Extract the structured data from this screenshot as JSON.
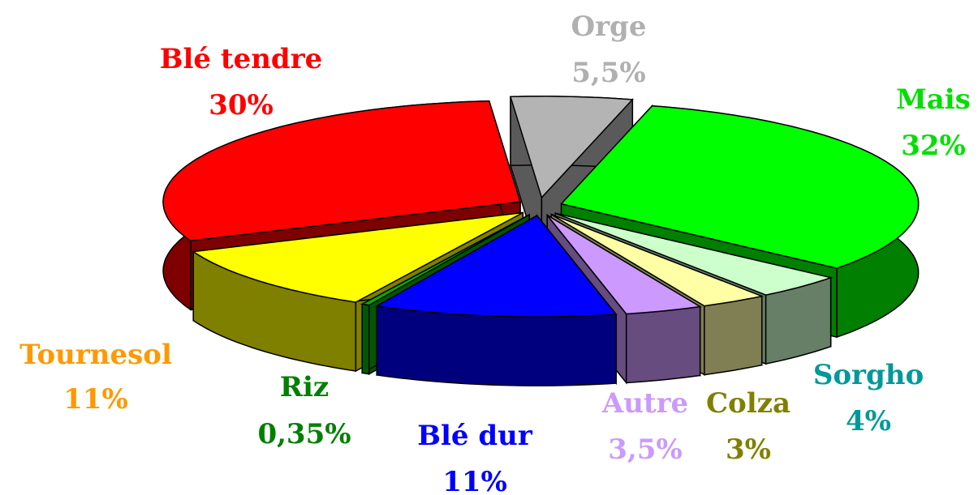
{
  "chart_data": {
    "type": "pie3d",
    "categories": [
      "Orge",
      "Mais",
      "Sorgho",
      "Colza",
      "Autre",
      "Blé dur",
      "Riz",
      "Tournesol",
      "Blé tendre"
    ],
    "values": [
      5.5,
      32,
      4,
      3,
      3.5,
      11,
      0.35,
      11,
      30
    ],
    "value_labels": [
      "5,5%",
      "32%",
      "4%",
      "3%",
      "3,5%",
      "11%",
      "0,35%",
      "11%",
      "30%"
    ],
    "colors": [
      "#b4b4b4",
      "#00ff00",
      "#ccffcc",
      "#ffffa6",
      "#cc99ff",
      "#0000ff",
      "#00b000",
      "#ffff00",
      "#ff0000"
    ],
    "label_colors": [
      "#b0b0b0",
      "#00e000",
      "#009999",
      "#808000",
      "#cc99ff",
      "#0000ff",
      "#008000",
      "#ff9900",
      "#ff0000"
    ]
  }
}
